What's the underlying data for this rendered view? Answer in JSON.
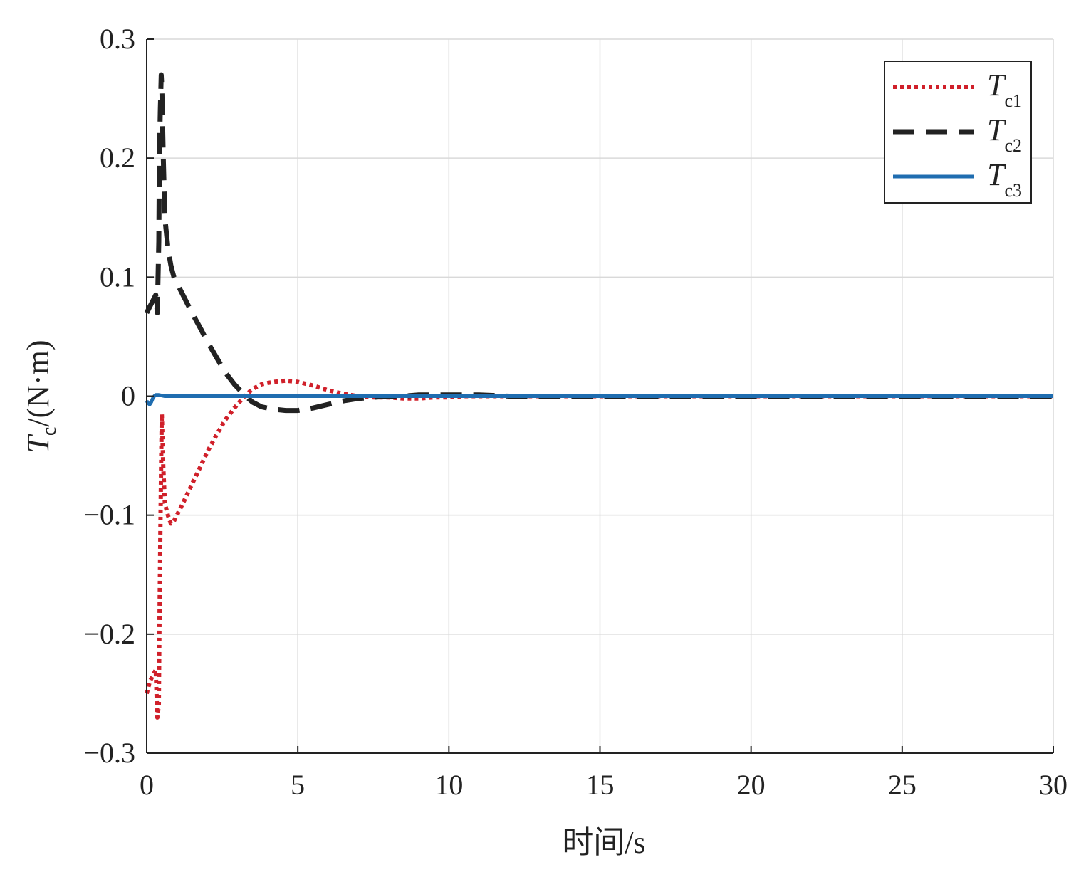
{
  "chart_data": {
    "type": "line",
    "xlabel": "时间/s",
    "ylabel": {
      "symbol": "T",
      "subscript": "c",
      "unit": "/(N·m)"
    },
    "xlim": [
      0,
      30
    ],
    "ylim": [
      -0.3,
      0.3
    ],
    "xticks": [
      0,
      5,
      10,
      15,
      20,
      25,
      30
    ],
    "xtick_labels": [
      "0",
      "5",
      "10",
      "15",
      "20",
      "25",
      "30"
    ],
    "yticks": [
      -0.3,
      -0.2,
      -0.1,
      0,
      0.1,
      0.2,
      0.3
    ],
    "ytick_labels": [
      "−0.3",
      "−0.2",
      "−0.1",
      "0",
      "0.1",
      "0.2",
      "0.3"
    ],
    "grid": true,
    "legend_position": "top-right",
    "series": [
      {
        "name": "T",
        "subscript": "c1",
        "color": "#d0202a",
        "style": "dotted",
        "x": [
          0,
          0.1,
          0.2,
          0.3,
          0.35,
          0.4,
          0.42,
          0.45,
          0.48,
          0.5,
          0.55,
          0.6,
          0.7,
          0.8,
          0.9,
          1.0,
          1.2,
          1.5,
          1.8,
          2.0,
          2.3,
          2.6,
          2.9,
          3.2,
          3.5,
          3.8,
          4.2,
          4.6,
          5.0,
          5.5,
          6.0,
          6.5,
          7.0,
          7.5,
          8.0,
          8.5,
          9.0,
          9.5,
          10.0,
          10.5,
          11.0,
          12.0,
          13.0,
          14.0,
          30.0
        ],
        "y": [
          -0.25,
          -0.24,
          -0.235,
          -0.23,
          -0.27,
          -0.26,
          -0.2,
          -0.12,
          -0.05,
          -0.015,
          -0.06,
          -0.09,
          -0.1,
          -0.107,
          -0.105,
          -0.1,
          -0.09,
          -0.074,
          -0.058,
          -0.047,
          -0.033,
          -0.02,
          -0.01,
          -0.001,
          0.006,
          0.01,
          0.012,
          0.013,
          0.012,
          0.009,
          0.005,
          0.002,
          0.0,
          -0.001,
          -0.001,
          -0.002,
          -0.002,
          -0.001,
          -0.001,
          0.0,
          0.0,
          0.0,
          0.0,
          0.0,
          0.0
        ]
      },
      {
        "name": "T",
        "subscript": "c2",
        "color": "#222222",
        "style": "dashed",
        "x": [
          0,
          0.1,
          0.2,
          0.3,
          0.35,
          0.4,
          0.42,
          0.45,
          0.48,
          0.5,
          0.55,
          0.6,
          0.7,
          0.8,
          0.9,
          1.0,
          1.2,
          1.5,
          1.8,
          2.0,
          2.3,
          2.6,
          2.9,
          3.2,
          3.5,
          3.8,
          4.2,
          4.6,
          5.0,
          5.5,
          6.0,
          6.5,
          7.0,
          7.5,
          8.0,
          8.5,
          9.0,
          9.5,
          10.0,
          11.0,
          12.0,
          13.0,
          30.0
        ],
        "y": [
          0.07,
          0.075,
          0.08,
          0.085,
          0.07,
          0.13,
          0.2,
          0.24,
          0.27,
          0.26,
          0.2,
          0.15,
          0.125,
          0.11,
          0.1,
          0.095,
          0.085,
          0.07,
          0.056,
          0.046,
          0.033,
          0.02,
          0.01,
          0.002,
          -0.005,
          -0.009,
          -0.011,
          -0.012,
          -0.012,
          -0.01,
          -0.007,
          -0.004,
          -0.002,
          -0.001,
          0.0,
          0.0,
          0.001,
          0.001,
          0.001,
          0.001,
          0.0,
          0.0,
          0.0
        ]
      },
      {
        "name": "T",
        "subscript": "c3",
        "color": "#1f6db0",
        "style": "solid",
        "x": [
          0,
          0.05,
          0.1,
          0.15,
          0.2,
          0.25,
          0.3,
          0.4,
          0.6,
          1.0,
          30.0
        ],
        "y": [
          -0.004,
          -0.006,
          -0.007,
          -0.005,
          -0.002,
          0.0,
          0.001,
          0.001,
          0.0,
          0.0,
          0.0
        ]
      }
    ]
  }
}
